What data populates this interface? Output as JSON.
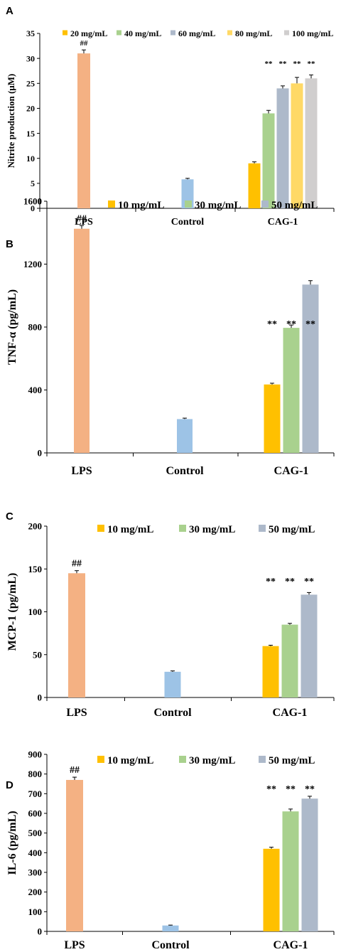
{
  "colors": {
    "lps": "#F4B183",
    "control": "#9DC3E6",
    "c1": "#FFC000",
    "c2": "#A9D18E",
    "c3": "#ADB9CA",
    "c4": "#FFD966",
    "c5": "#D0CECE",
    "axis": "#000000"
  },
  "chart_data": [
    {
      "panel": "A",
      "type": "bar",
      "ylabel": "Nitrite production (μM)",
      "ylim": [
        0,
        35
      ],
      "yticks": [
        0,
        5,
        10,
        15,
        20,
        25,
        30,
        35
      ],
      "groups": [
        "LPS",
        "Control",
        "CAG-1"
      ],
      "legend": [
        "20 mg/mL",
        "40 mg/mL",
        "60 mg/mL",
        "80 mg/mL",
        "100 mg/mL"
      ],
      "legend_placement": "top-right",
      "bars": [
        {
          "group": "LPS",
          "label": "LPS",
          "value": 31,
          "error": 0.7,
          "annotation": "##",
          "color": "lps"
        },
        {
          "group": "Control",
          "label": "Control",
          "value": 5.8,
          "error": 0.2,
          "annotation": "",
          "color": "control"
        },
        {
          "group": "CAG-1",
          "label": "20 mg/mL",
          "value": 9,
          "error": 0.3,
          "annotation": "",
          "color": "c1"
        },
        {
          "group": "CAG-1",
          "label": "40 mg/mL",
          "value": 19,
          "error": 0.6,
          "annotation": "**",
          "color": "c2"
        },
        {
          "group": "CAG-1",
          "label": "60 mg/mL",
          "value": 24,
          "error": 0.5,
          "annotation": "**",
          "color": "c3"
        },
        {
          "group": "CAG-1",
          "label": "80 mg/mL",
          "value": 25,
          "error": 1.2,
          "annotation": "**",
          "color": "c4"
        },
        {
          "group": "CAG-1",
          "label": "100 mg/mL",
          "value": 26,
          "error": 0.7,
          "annotation": "**",
          "color": "c5"
        }
      ]
    },
    {
      "panel": "B",
      "type": "bar",
      "ylabel": "TNF-α (pg/mL)",
      "ylim": [
        0,
        1600
      ],
      "yticks": [
        0,
        400,
        800,
        1200,
        1600
      ],
      "groups": [
        "LPS",
        "Control",
        "CAG-1"
      ],
      "legend": [
        "10 mg/mL",
        "30 mg/mL",
        "50 mg/mL"
      ],
      "legend_placement": "top-right",
      "bars": [
        {
          "group": "LPS",
          "label": "LPS",
          "value": 1425,
          "error": 20,
          "annotation": "##",
          "color": "lps"
        },
        {
          "group": "Control",
          "label": "Control",
          "value": 215,
          "error": 6,
          "annotation": "",
          "color": "control"
        },
        {
          "group": "CAG-1",
          "label": "10 mg/mL",
          "value": 435,
          "error": 8,
          "annotation": "**",
          "color": "c1"
        },
        {
          "group": "CAG-1",
          "label": "30 mg/mL",
          "value": 795,
          "error": 18,
          "annotation": "**",
          "color": "c2"
        },
        {
          "group": "CAG-1",
          "label": "50 mg/mL",
          "value": 1070,
          "error": 25,
          "annotation": "**",
          "color": "c3"
        }
      ]
    },
    {
      "panel": "C",
      "type": "bar",
      "ylabel": "MCP-1 (pg/mL)",
      "ylim": [
        0,
        200
      ],
      "yticks": [
        0,
        50,
        100,
        150,
        200
      ],
      "groups": [
        "LPS",
        "Control",
        "CAG-1"
      ],
      "legend": [
        "10 mg/mL",
        "30 mg/mL",
        "50 mg/mL"
      ],
      "legend_placement": "top-right",
      "bars": [
        {
          "group": "LPS",
          "label": "LPS",
          "value": 145,
          "error": 3,
          "annotation": "##",
          "color": "lps"
        },
        {
          "group": "Control",
          "label": "Control",
          "value": 30,
          "error": 1,
          "annotation": "",
          "color": "control"
        },
        {
          "group": "CAG-1",
          "label": "10 mg/mL",
          "value": 60,
          "error": 1,
          "annotation": "**",
          "color": "c1"
        },
        {
          "group": "CAG-1",
          "label": "30 mg/mL",
          "value": 85,
          "error": 1.5,
          "annotation": "**",
          "color": "c2"
        },
        {
          "group": "CAG-1",
          "label": "50 mg/mL",
          "value": 120,
          "error": 2.5,
          "annotation": "**",
          "color": "c3"
        }
      ]
    },
    {
      "panel": "D",
      "type": "bar",
      "ylabel": "IL-6 (pg/mL)",
      "ylim": [
        0,
        900
      ],
      "yticks": [
        0,
        100,
        200,
        300,
        400,
        500,
        600,
        700,
        800,
        900
      ],
      "groups": [
        "LPS",
        "Control",
        "CAG-1"
      ],
      "legend": [
        "10 mg/mL",
        "30 mg/mL",
        "50 mg/mL"
      ],
      "legend_placement": "top-right",
      "bars": [
        {
          "group": "LPS",
          "label": "LPS",
          "value": 770,
          "error": 14,
          "annotation": "##",
          "color": "lps"
        },
        {
          "group": "Control",
          "label": "Control",
          "value": 30,
          "error": 2,
          "annotation": "",
          "color": "control"
        },
        {
          "group": "CAG-1",
          "label": "10 mg/mL",
          "value": 420,
          "error": 8,
          "annotation": "**",
          "color": "c1"
        },
        {
          "group": "CAG-1",
          "label": "30 mg/mL",
          "value": 610,
          "error": 12,
          "annotation": "**",
          "color": "c2"
        },
        {
          "group": "CAG-1",
          "label": "50 mg/mL",
          "value": 675,
          "error": 12,
          "annotation": "**",
          "color": "c3"
        }
      ]
    }
  ]
}
